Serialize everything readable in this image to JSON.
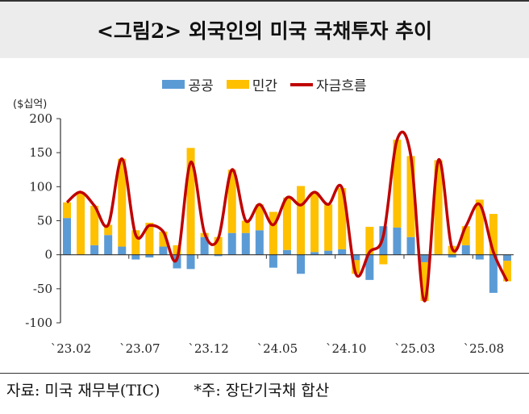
{
  "title": "<그림2> 외국인의 미국 국채투자 추이",
  "unit": "($십억)",
  "footer": {
    "source": "자료: 미국 재무부(TIC)",
    "note": "*주: 장단기국채 합산"
  },
  "colors": {
    "public": "#5b9bd5",
    "private": "#ffc000",
    "total": "#c00000"
  },
  "chart_data": {
    "type": "bar+line",
    "title": "<그림2> 외국인의 미국 국채투자 추이",
    "ylabel": "($십억)",
    "ylim": [
      -100,
      200
    ],
    "yticks": [
      200,
      150,
      100,
      50,
      0,
      -50,
      -100
    ],
    "xtick_labels": [
      "`23.02",
      "`23.07",
      "`23.12",
      "`24.05",
      "`24.10",
      "`25.03",
      "`25.08"
    ],
    "xtick_index": [
      0,
      5,
      10,
      15,
      20,
      25,
      30
    ],
    "legend": [
      "공공",
      "민간",
      "자금흐름"
    ],
    "legend_position": "top",
    "categories": [
      "23.02",
      "23.03",
      "23.04",
      "23.05",
      "23.06",
      "23.07",
      "23.08",
      "23.09",
      "23.10",
      "23.11",
      "23.12",
      "24.01",
      "24.02",
      "24.03",
      "24.04",
      "24.05",
      "24.06",
      "24.07",
      "24.08",
      "24.09",
      "24.10",
      "24.11",
      "24.12",
      "25.01",
      "25.02",
      "25.03",
      "25.04",
      "25.05",
      "25.06",
      "25.07",
      "25.08",
      "25.09",
      "25.10"
    ],
    "series": [
      {
        "name": "공공",
        "type": "bar",
        "values": [
          54,
          0,
          14,
          29,
          12,
          -7,
          -4,
          12,
          -20,
          -21,
          26,
          -2,
          32,
          32,
          36,
          -19,
          7,
          -28,
          4,
          6,
          8,
          -8,
          -37,
          42,
          40,
          26,
          -11,
          0,
          -4,
          14,
          -7,
          -56,
          -9
        ]
      },
      {
        "name": "민간",
        "type": "bar",
        "values": [
          23,
          92,
          58,
          15,
          129,
          36,
          47,
          22,
          14,
          157,
          6,
          26,
          93,
          18,
          38,
          63,
          77,
          101,
          88,
          68,
          90,
          -20,
          41,
          -14,
          129,
          119,
          -57,
          139,
          13,
          28,
          81,
          60,
          -30
        ]
      },
      {
        "name": "자금흐름",
        "type": "line",
        "values": [
          77,
          92,
          72,
          44,
          141,
          29,
          43,
          34,
          -6,
          136,
          32,
          24,
          125,
          50,
          74,
          44,
          84,
          73,
          92,
          74,
          98,
          -28,
          4,
          28,
          169,
          145,
          -68,
          139,
          9,
          42,
          74,
          4,
          -39
        ]
      }
    ]
  }
}
